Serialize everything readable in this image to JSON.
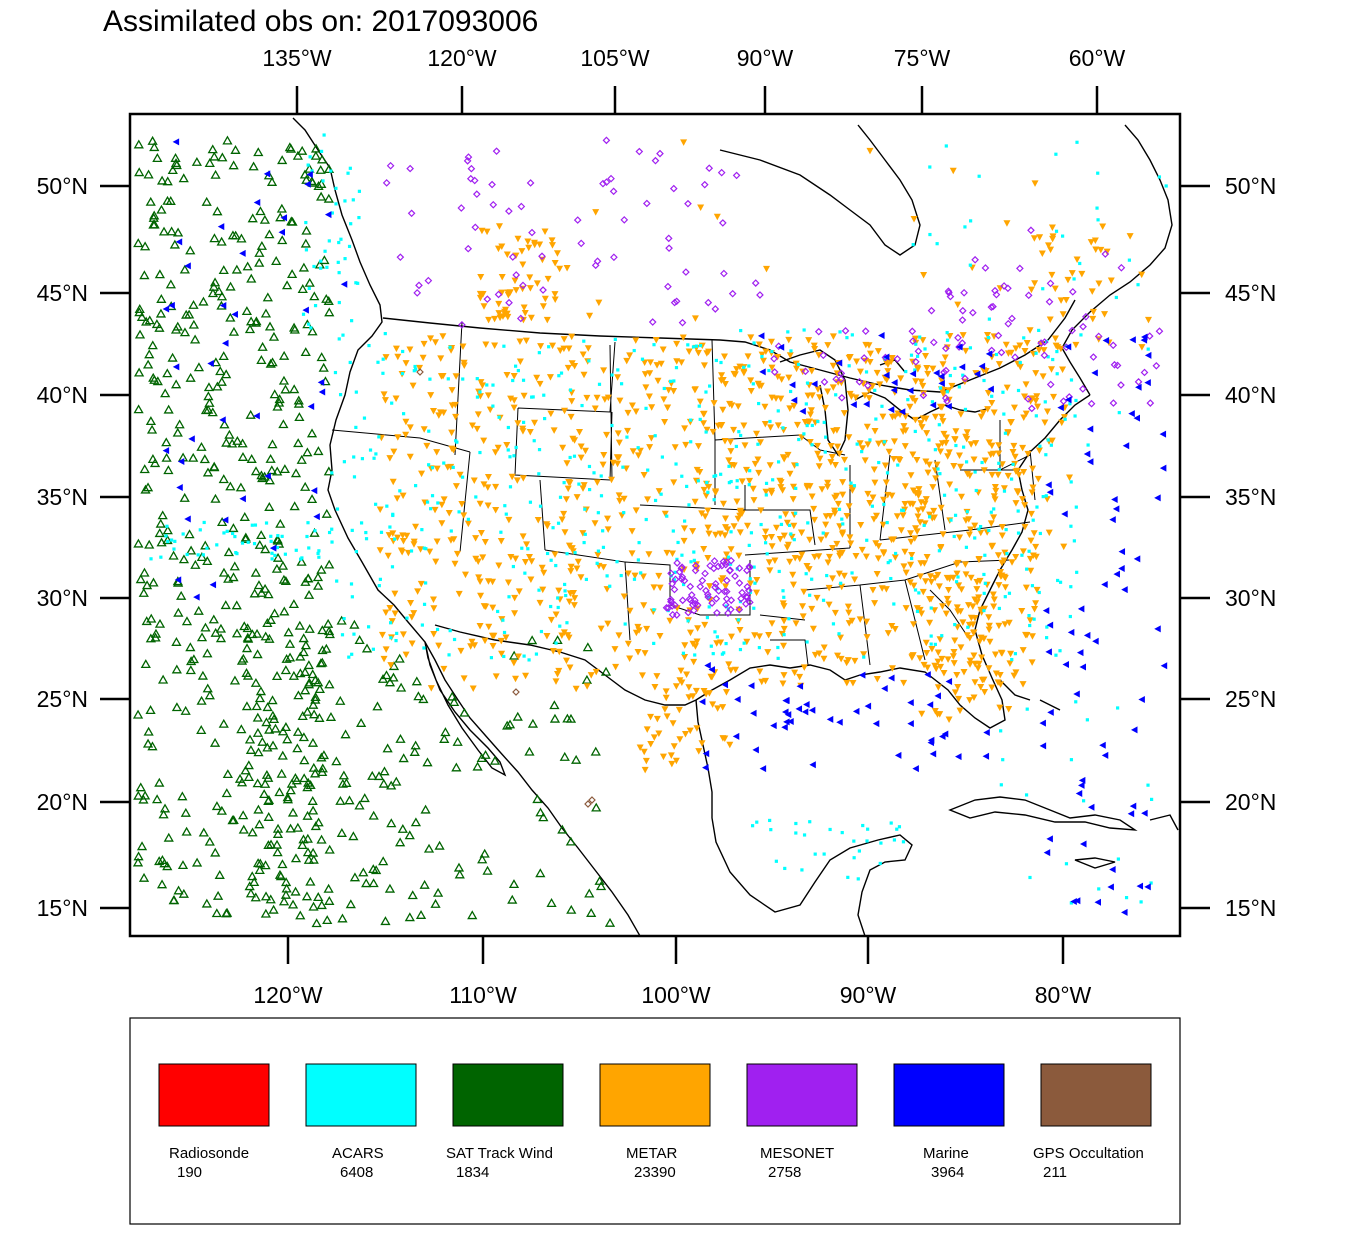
{
  "title": "Assimilated obs on: 2017093006",
  "axes": {
    "top_ticks": [
      "135°W",
      "120°W",
      "105°W",
      "90°W",
      "75°W",
      "60°W"
    ],
    "bottom_ticks": [
      "120°W",
      "110°W",
      "100°W",
      "90°W",
      "80°W"
    ],
    "left_ticks": [
      "50°N",
      "45°N",
      "40°N",
      "35°N",
      "30°N",
      "25°N",
      "20°N",
      "15°N"
    ],
    "right_ticks": [
      "50°N",
      "45°N",
      "40°N",
      "35°N",
      "30°N",
      "25°N",
      "20°N",
      "15°N"
    ]
  },
  "legend": [
    {
      "name": "Radiosonde",
      "count": "190",
      "color": "#ff0000"
    },
    {
      "name": "ACARS",
      "count": "6408",
      "color": "#00ffff"
    },
    {
      "name": "SAT Track Wind",
      "count": "1834",
      "color": "#006400"
    },
    {
      "name": "METAR",
      "count": "23390",
      "color": "#ffa500"
    },
    {
      "name": "MESONET",
      "count": "2758",
      "color": "#a020f0"
    },
    {
      "name": "Marine",
      "count": "3964",
      "color": "#0000ff"
    },
    {
      "name": "GPS Occultation",
      "count": "211",
      "color": "#8b5a3c"
    }
  ]
}
